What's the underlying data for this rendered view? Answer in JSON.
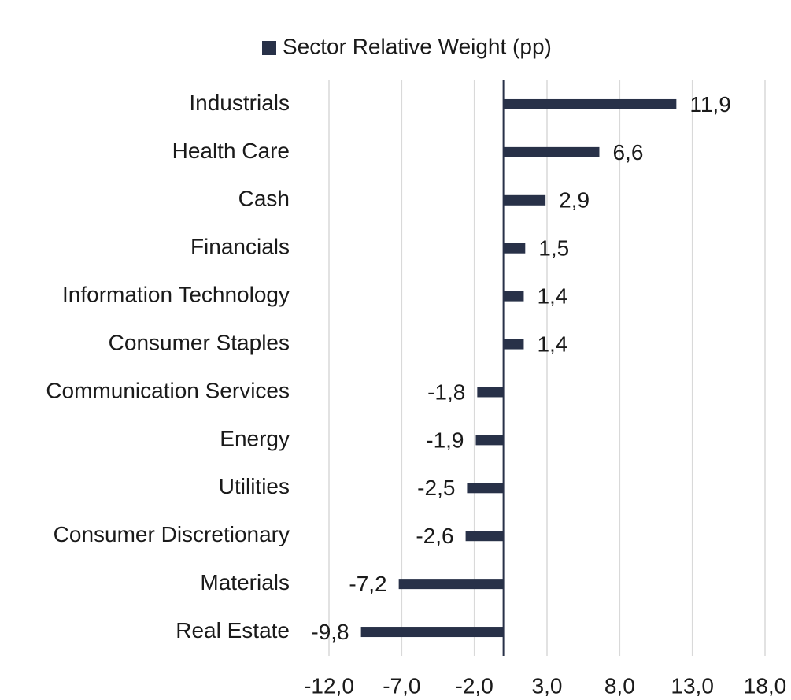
{
  "chart_data": {
    "type": "barh",
    "legend": "top",
    "series": [
      {
        "name": "Sector Relative Weight (pp)",
        "color": "#283148",
        "values": [
          11.9,
          6.6,
          2.9,
          1.5,
          1.4,
          1.4,
          -1.8,
          -1.9,
          -2.5,
          -2.6,
          -7.2,
          -9.8
        ],
        "value_labels": [
          "11,9",
          "6,6",
          "2,9",
          "1,5",
          "1,4",
          "1,4",
          "-1,8",
          "-1,9",
          "-2,5",
          "-2,6",
          "-7,2",
          "-9,8"
        ]
      }
    ],
    "categories": [
      "Industrials",
      "Health Care",
      "Cash",
      "Financials",
      "Information Technology",
      "Consumer Staples",
      "Communication Services",
      "Energy",
      "Utilities",
      "Consumer Discretionary",
      "Materials",
      "Real Estate"
    ],
    "xlim": [
      -12,
      18
    ],
    "xticks": [
      {
        "value": -12,
        "label": "-12,0"
      },
      {
        "value": -7,
        "label": "-7,0"
      },
      {
        "value": -2,
        "label": "-2,0"
      },
      {
        "value": 3,
        "label": "3,0"
      },
      {
        "value": 8,
        "label": "8,0"
      },
      {
        "value": 13,
        "label": "13,0"
      },
      {
        "value": 18,
        "label": "18,0"
      }
    ],
    "grid": true
  }
}
